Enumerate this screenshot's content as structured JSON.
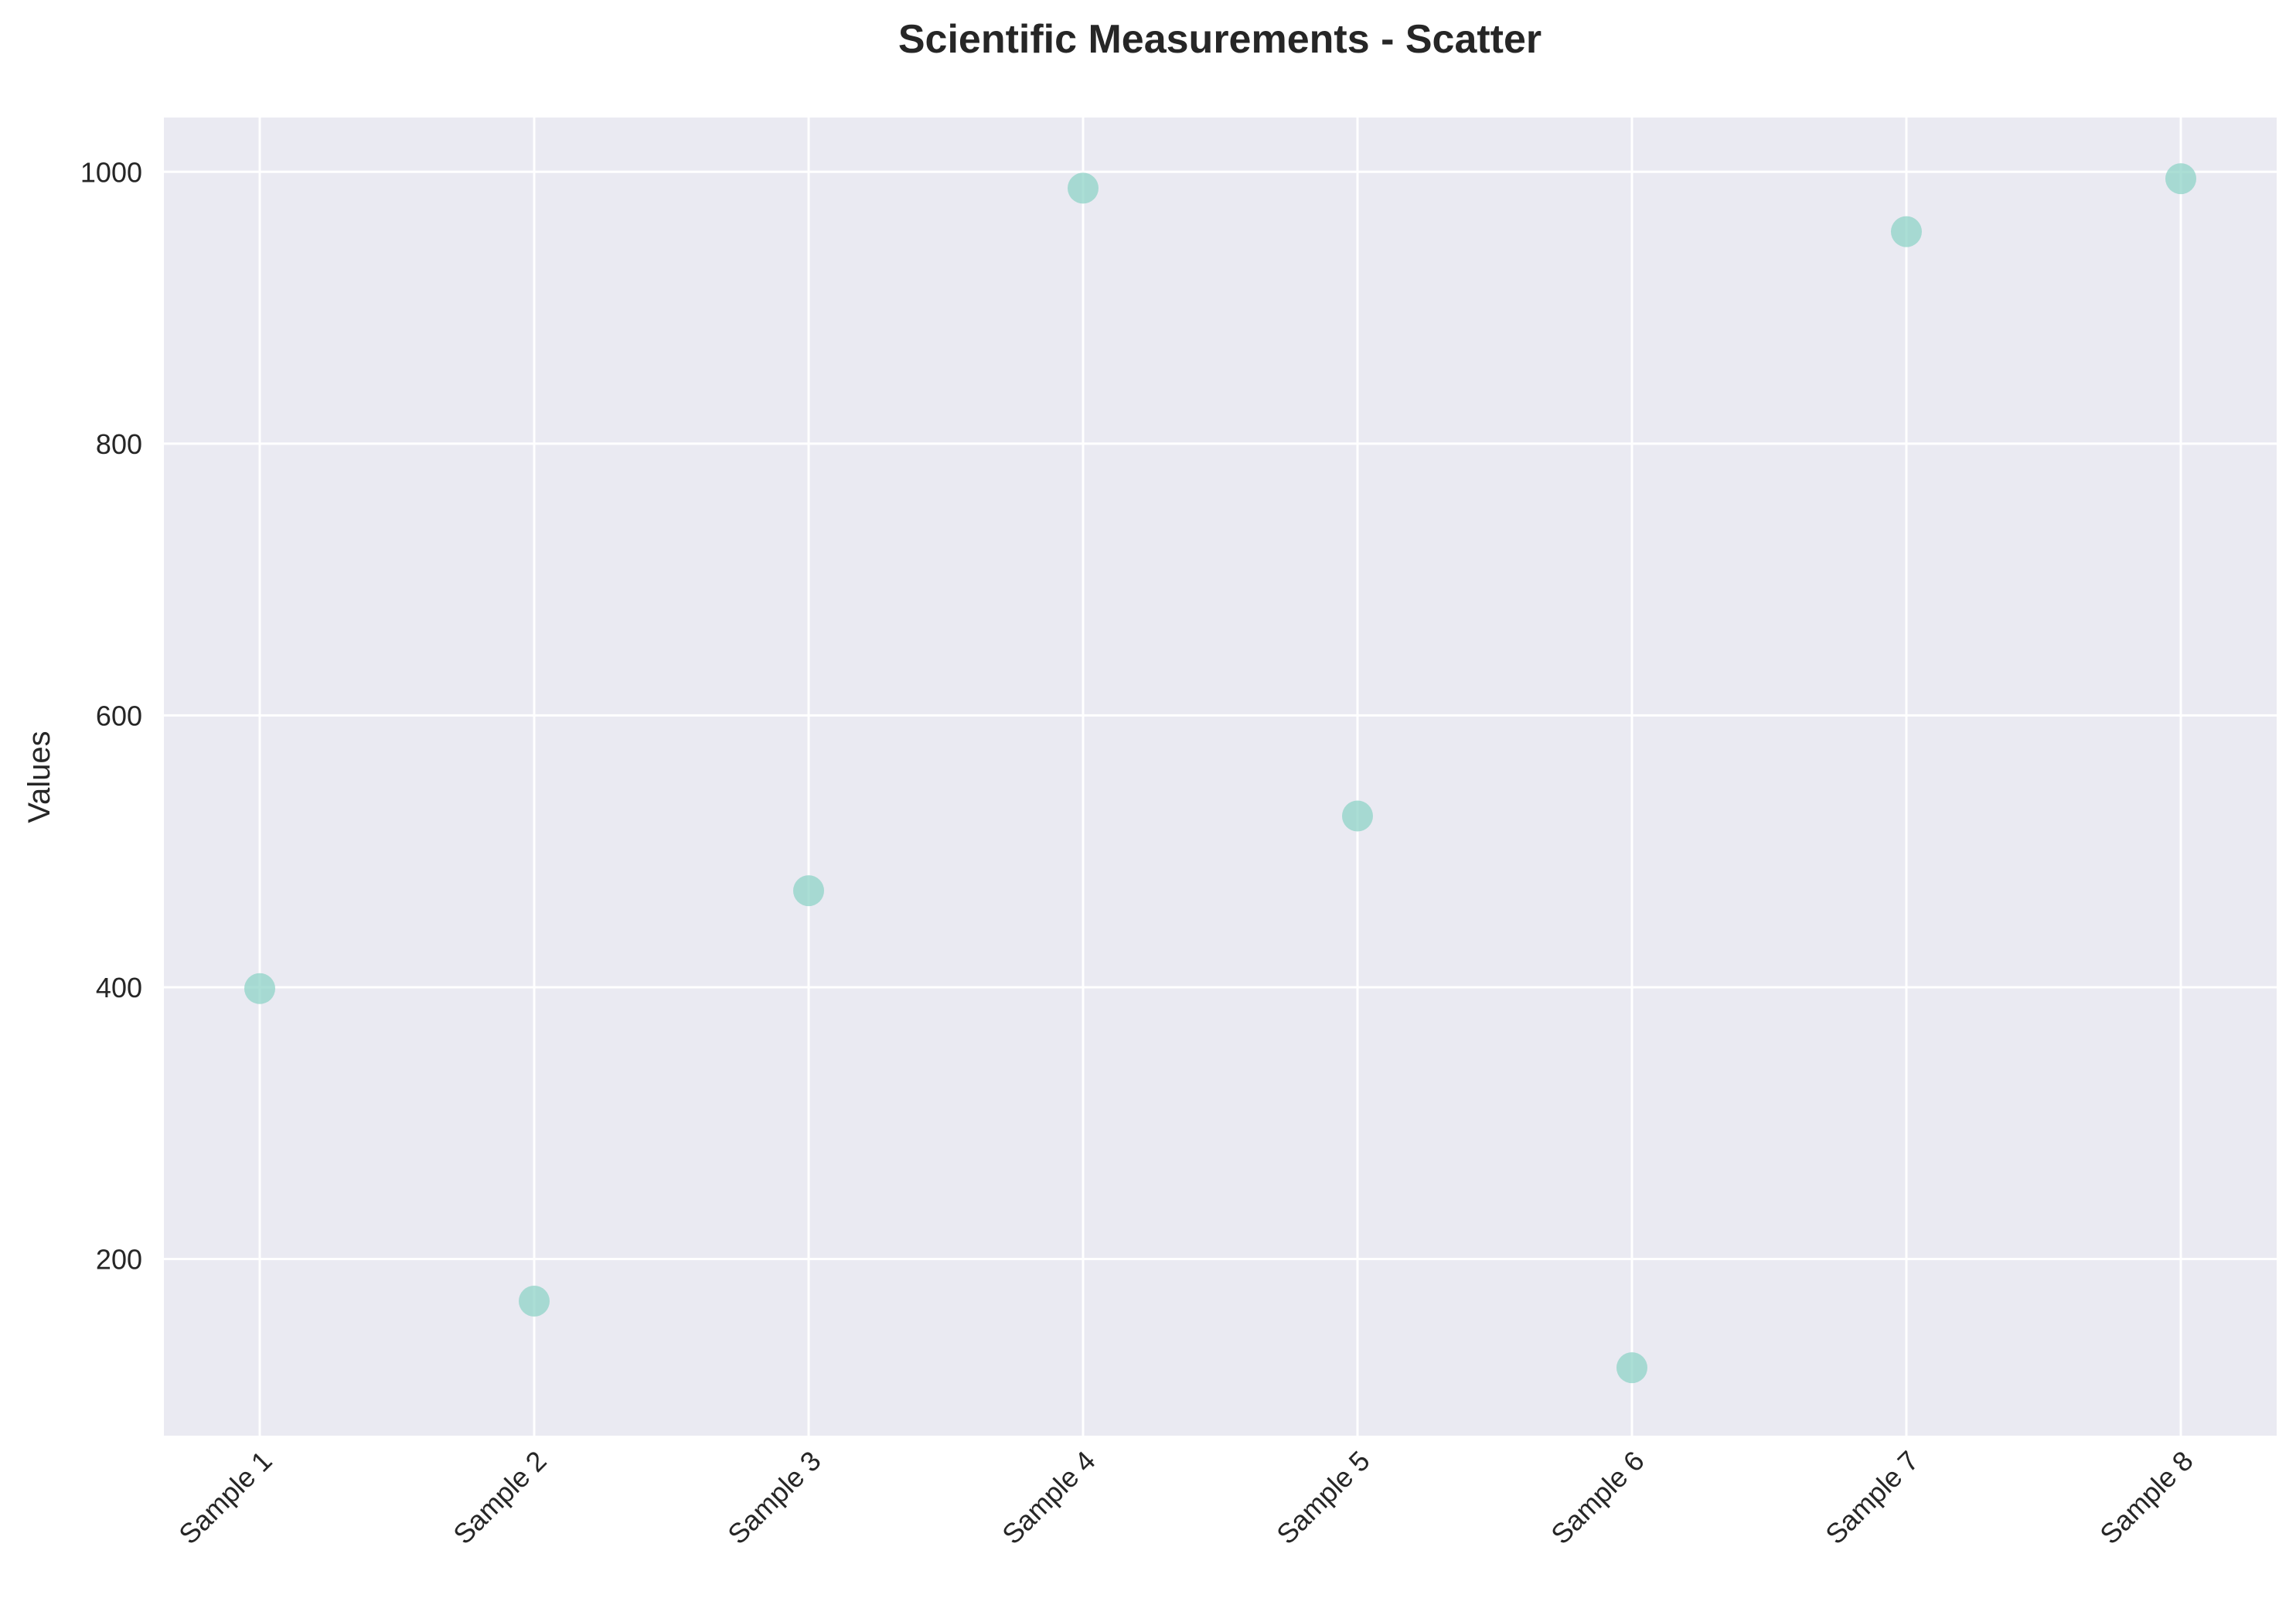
{
  "chart_data": {
    "type": "scatter",
    "title": "Scientific Measurements - Scatter",
    "xlabel": "",
    "ylabel": "Values",
    "categories": [
      "Sample 1",
      "Sample 2",
      "Sample 3",
      "Sample 4",
      "Sample 5",
      "Sample 6",
      "Sample 7",
      "Sample 8"
    ],
    "values": [
      399,
      169,
      471,
      988,
      526,
      120,
      956,
      995
    ],
    "y_ticks": [
      "200",
      "400",
      "600",
      "800",
      "1000"
    ],
    "ylim": [
      70,
      1040
    ],
    "grid": true,
    "legend": "none",
    "colors": {
      "plot_background": "#eaeaf2",
      "grid": "#ffffff",
      "marker": "#8fd3c7",
      "text": "#262626"
    }
  }
}
